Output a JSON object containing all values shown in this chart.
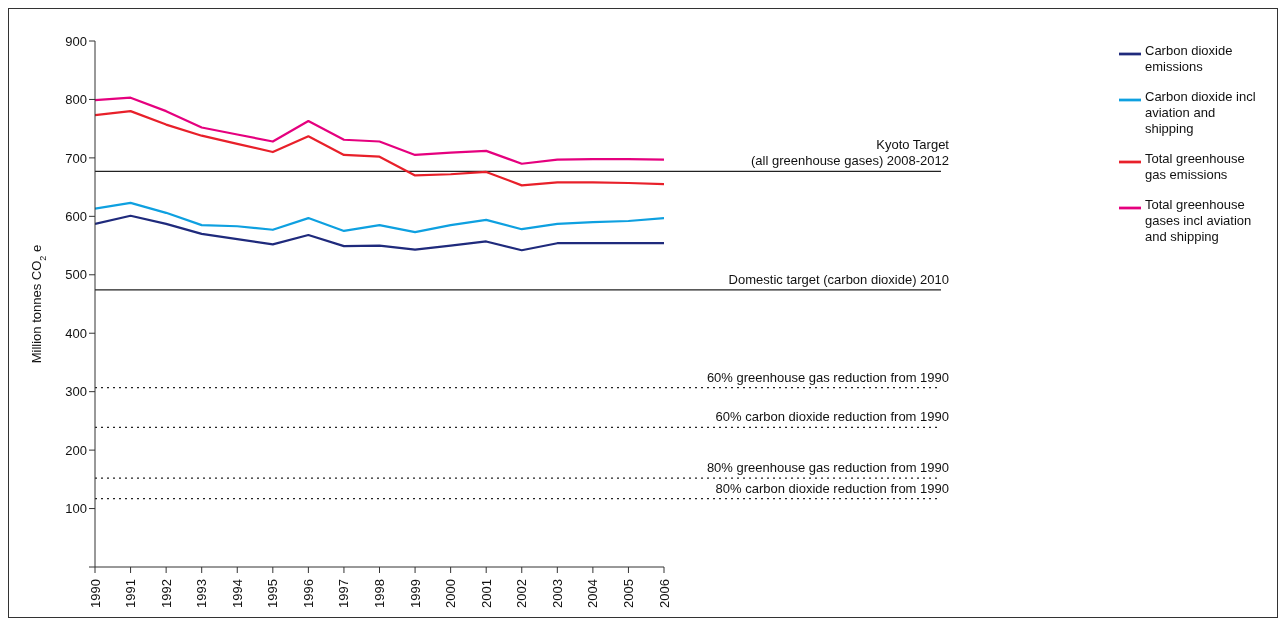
{
  "chart_data": {
    "type": "line",
    "ylabel": "Million tonnes CO$_{2}$ e",
    "x": [
      1990,
      1991,
      1992,
      1993,
      1994,
      1995,
      1996,
      1997,
      1998,
      1999,
      2000,
      2001,
      2002,
      2003,
      2004,
      2005,
      2006
    ],
    "xlim": [
      1990,
      2006
    ],
    "xticks": [
      1990,
      1991,
      1992,
      1993,
      1994,
      1995,
      1996,
      1997,
      1998,
      1999,
      2000,
      2001,
      2002,
      2003,
      2004,
      2005,
      2006
    ],
    "ylim": [
      0,
      900
    ],
    "yticks": [
      {
        "value": 0,
        "label": null
      },
      100,
      200,
      300,
      400,
      500,
      600,
      700,
      800,
      900
    ],
    "series": [
      {
        "name": "Total greenhouse gas emissions",
        "color": "#e8202a",
        "values": [
          773,
          780,
          757,
          738,
          724,
          710,
          737,
          705,
          702,
          670,
          672,
          676,
          653,
          658,
          658,
          657,
          655
        ]
      },
      {
        "name": "Total greenhouse gases incl aviation and shipping",
        "color": "#e5007e",
        "values": [
          799,
          803,
          780,
          752,
          740,
          728,
          763,
          731,
          728,
          705,
          709,
          712,
          690,
          697,
          698,
          698,
          697
        ]
      },
      {
        "name": "Carbon dioxide emissions",
        "color": "#1f2a7c",
        "values": [
          587,
          601,
          587,
          570,
          561,
          552,
          568,
          549,
          550,
          543,
          550,
          557,
          542,
          554,
          554,
          554,
          554
        ]
      },
      {
        "name": "Carbon dioxide incl aviation and shipping",
        "color": "#0ea0e0",
        "values": [
          613,
          623,
          606,
          585,
          583,
          577,
          597,
          575,
          585,
          573,
          585,
          594,
          578,
          587,
          590,
          592,
          597
        ]
      }
    ],
    "ref_lines": [
      {
        "axis": "y",
        "value": 677,
        "label": "Kyoto Target\n(all greenhouse gases) 2008-2012",
        "color": "#222222",
        "line_style": "solid"
      },
      {
        "axis": "y",
        "value": 474,
        "label": "Domestic target (carbon dioxide) 2010",
        "color": "#222222",
        "line_style": "solid"
      },
      {
        "axis": "y",
        "value": 307,
        "label": "60% greenhouse gas reduction from 1990",
        "color": "#222222",
        "line_style": "dotted"
      },
      {
        "axis": "y",
        "value": 239,
        "label": "60% carbon dioxide reduction from 1990",
        "color": "#222222",
        "line_style": "dotted"
      },
      {
        "axis": "y",
        "value": 152,
        "label": "80% greenhouse gas reduction from 1990",
        "color": "#222222",
        "line_style": "dotted"
      },
      {
        "axis": "y",
        "value": 117,
        "label": "80% carbon dioxide reduction from 1990",
        "color": "#222222",
        "line_style": "dotted"
      }
    ],
    "grid": false,
    "legend": "top right",
    "marker": "none",
    "line_style": "solid"
  }
}
